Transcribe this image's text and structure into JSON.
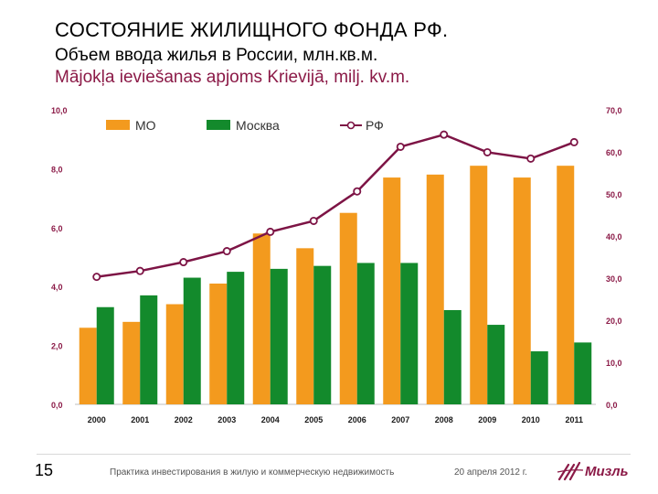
{
  "title": "СОСТОЯНИЕ ЖИЛИЩНОГО ФОНДА РФ.",
  "subtitle_ru": "Объем ввода жилья в России, млн.кв.м.",
  "subtitle_lv": "Mājokļa ieviešanas apjoms Krievijā, milj. kv.m.",
  "colors": {
    "mo": "#f39a1e",
    "moscow": "#138a2c",
    "rf": "#7d1445",
    "axis_text": "#8b1a47"
  },
  "chart_data": {
    "type": "bar",
    "categories": [
      "2000",
      "2001",
      "2002",
      "2003",
      "2004",
      "2005",
      "2006",
      "2007",
      "2008",
      "2009",
      "2010",
      "2011"
    ],
    "series": [
      {
        "name": "МО",
        "axis": "left",
        "values": [
          2.6,
          2.8,
          3.4,
          4.1,
          5.8,
          5.3,
          6.5,
          7.7,
          7.8,
          8.1,
          7.7,
          8.1
        ]
      },
      {
        "name": "Москва",
        "axis": "left",
        "values": [
          3.3,
          3.7,
          4.3,
          4.5,
          4.6,
          4.7,
          4.8,
          4.8,
          3.2,
          2.7,
          1.8,
          2.1
        ]
      },
      {
        "name": "РФ",
        "axis": "right",
        "type": "line",
        "values": [
          30.3,
          31.7,
          33.8,
          36.4,
          41.0,
          43.6,
          50.6,
          61.2,
          64.1,
          59.9,
          58.4,
          62.3
        ]
      }
    ],
    "left_axis": {
      "ylim": [
        0,
        10
      ],
      "ticks": [
        "0,0",
        "2,0",
        "4,0",
        "6,0",
        "8,0",
        "10,0"
      ]
    },
    "right_axis": {
      "ylim": [
        0,
        70
      ],
      "ticks": [
        "0,0",
        "10,0",
        "20,0",
        "30,0",
        "40,0",
        "50,0",
        "60,0",
        "70,0"
      ]
    },
    "legend": [
      "МО",
      "Москва",
      "РФ"
    ],
    "legend_position": "top"
  },
  "footer": {
    "page": "15",
    "text": "Практика инвестирования в жилую и коммерческую недвижимость",
    "date": "20 апреля 2012 г.",
    "logo": "Мизль"
  }
}
